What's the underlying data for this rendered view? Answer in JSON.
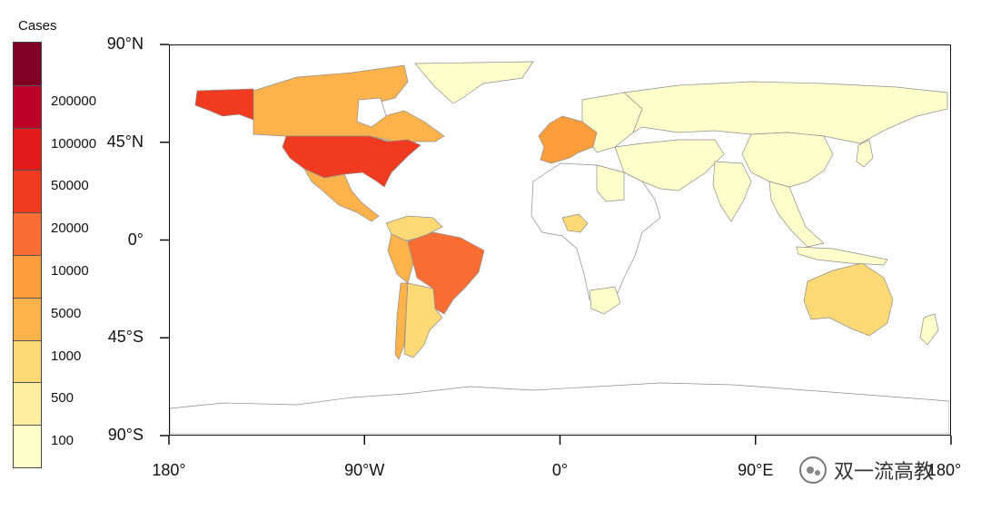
{
  "legend": {
    "title": "Cases",
    "colors": [
      "#ffffcc",
      "#ffeda0",
      "#fed976",
      "#feb24c",
      "#fd9d3b",
      "#fc6d33",
      "#f03b20",
      "#e31a1c",
      "#bd0026",
      "#800026"
    ],
    "labels": [
      "100",
      "500",
      "1000",
      "5000",
      "10000",
      "20000",
      "50000",
      "100000",
      "200000"
    ]
  },
  "axes": {
    "lat_labels": [
      "90°N",
      "45°N",
      "0°",
      "45°S",
      "90°S"
    ],
    "lon_labels": [
      "180°",
      "90°W",
      "0°",
      "90°E",
      "180°"
    ]
  },
  "map": {
    "land_default": "#ffffff",
    "border_color": "#8c8c8c",
    "regions": [
      {
        "name": "Alaska",
        "color": "#f03b20"
      },
      {
        "name": "Canada",
        "color": "#feb24c"
      },
      {
        "name": "Greenland",
        "color": "#ffffcc"
      },
      {
        "name": "United States",
        "color": "#f03b20"
      },
      {
        "name": "Mexico",
        "color": "#feb24c"
      },
      {
        "name": "Brazil",
        "color": "#fc6d33"
      },
      {
        "name": "Peru",
        "color": "#feb24c"
      },
      {
        "name": "Chile",
        "color": "#feb24c"
      },
      {
        "name": "Argentina",
        "color": "#fed976"
      },
      {
        "name": "Western Europe",
        "color": "#fd9d3b"
      },
      {
        "name": "Russia",
        "color": "#ffffcc"
      },
      {
        "name": "China",
        "color": "#ffffcc"
      },
      {
        "name": "India",
        "color": "#ffffcc"
      },
      {
        "name": "Australia",
        "color": "#fed976"
      },
      {
        "name": "Africa",
        "color": "#ffffff"
      },
      {
        "name": "Antarctica",
        "color": "#ffffff"
      }
    ]
  },
  "watermark": {
    "text": "双一流高教",
    "icon": "wechat-icon"
  }
}
